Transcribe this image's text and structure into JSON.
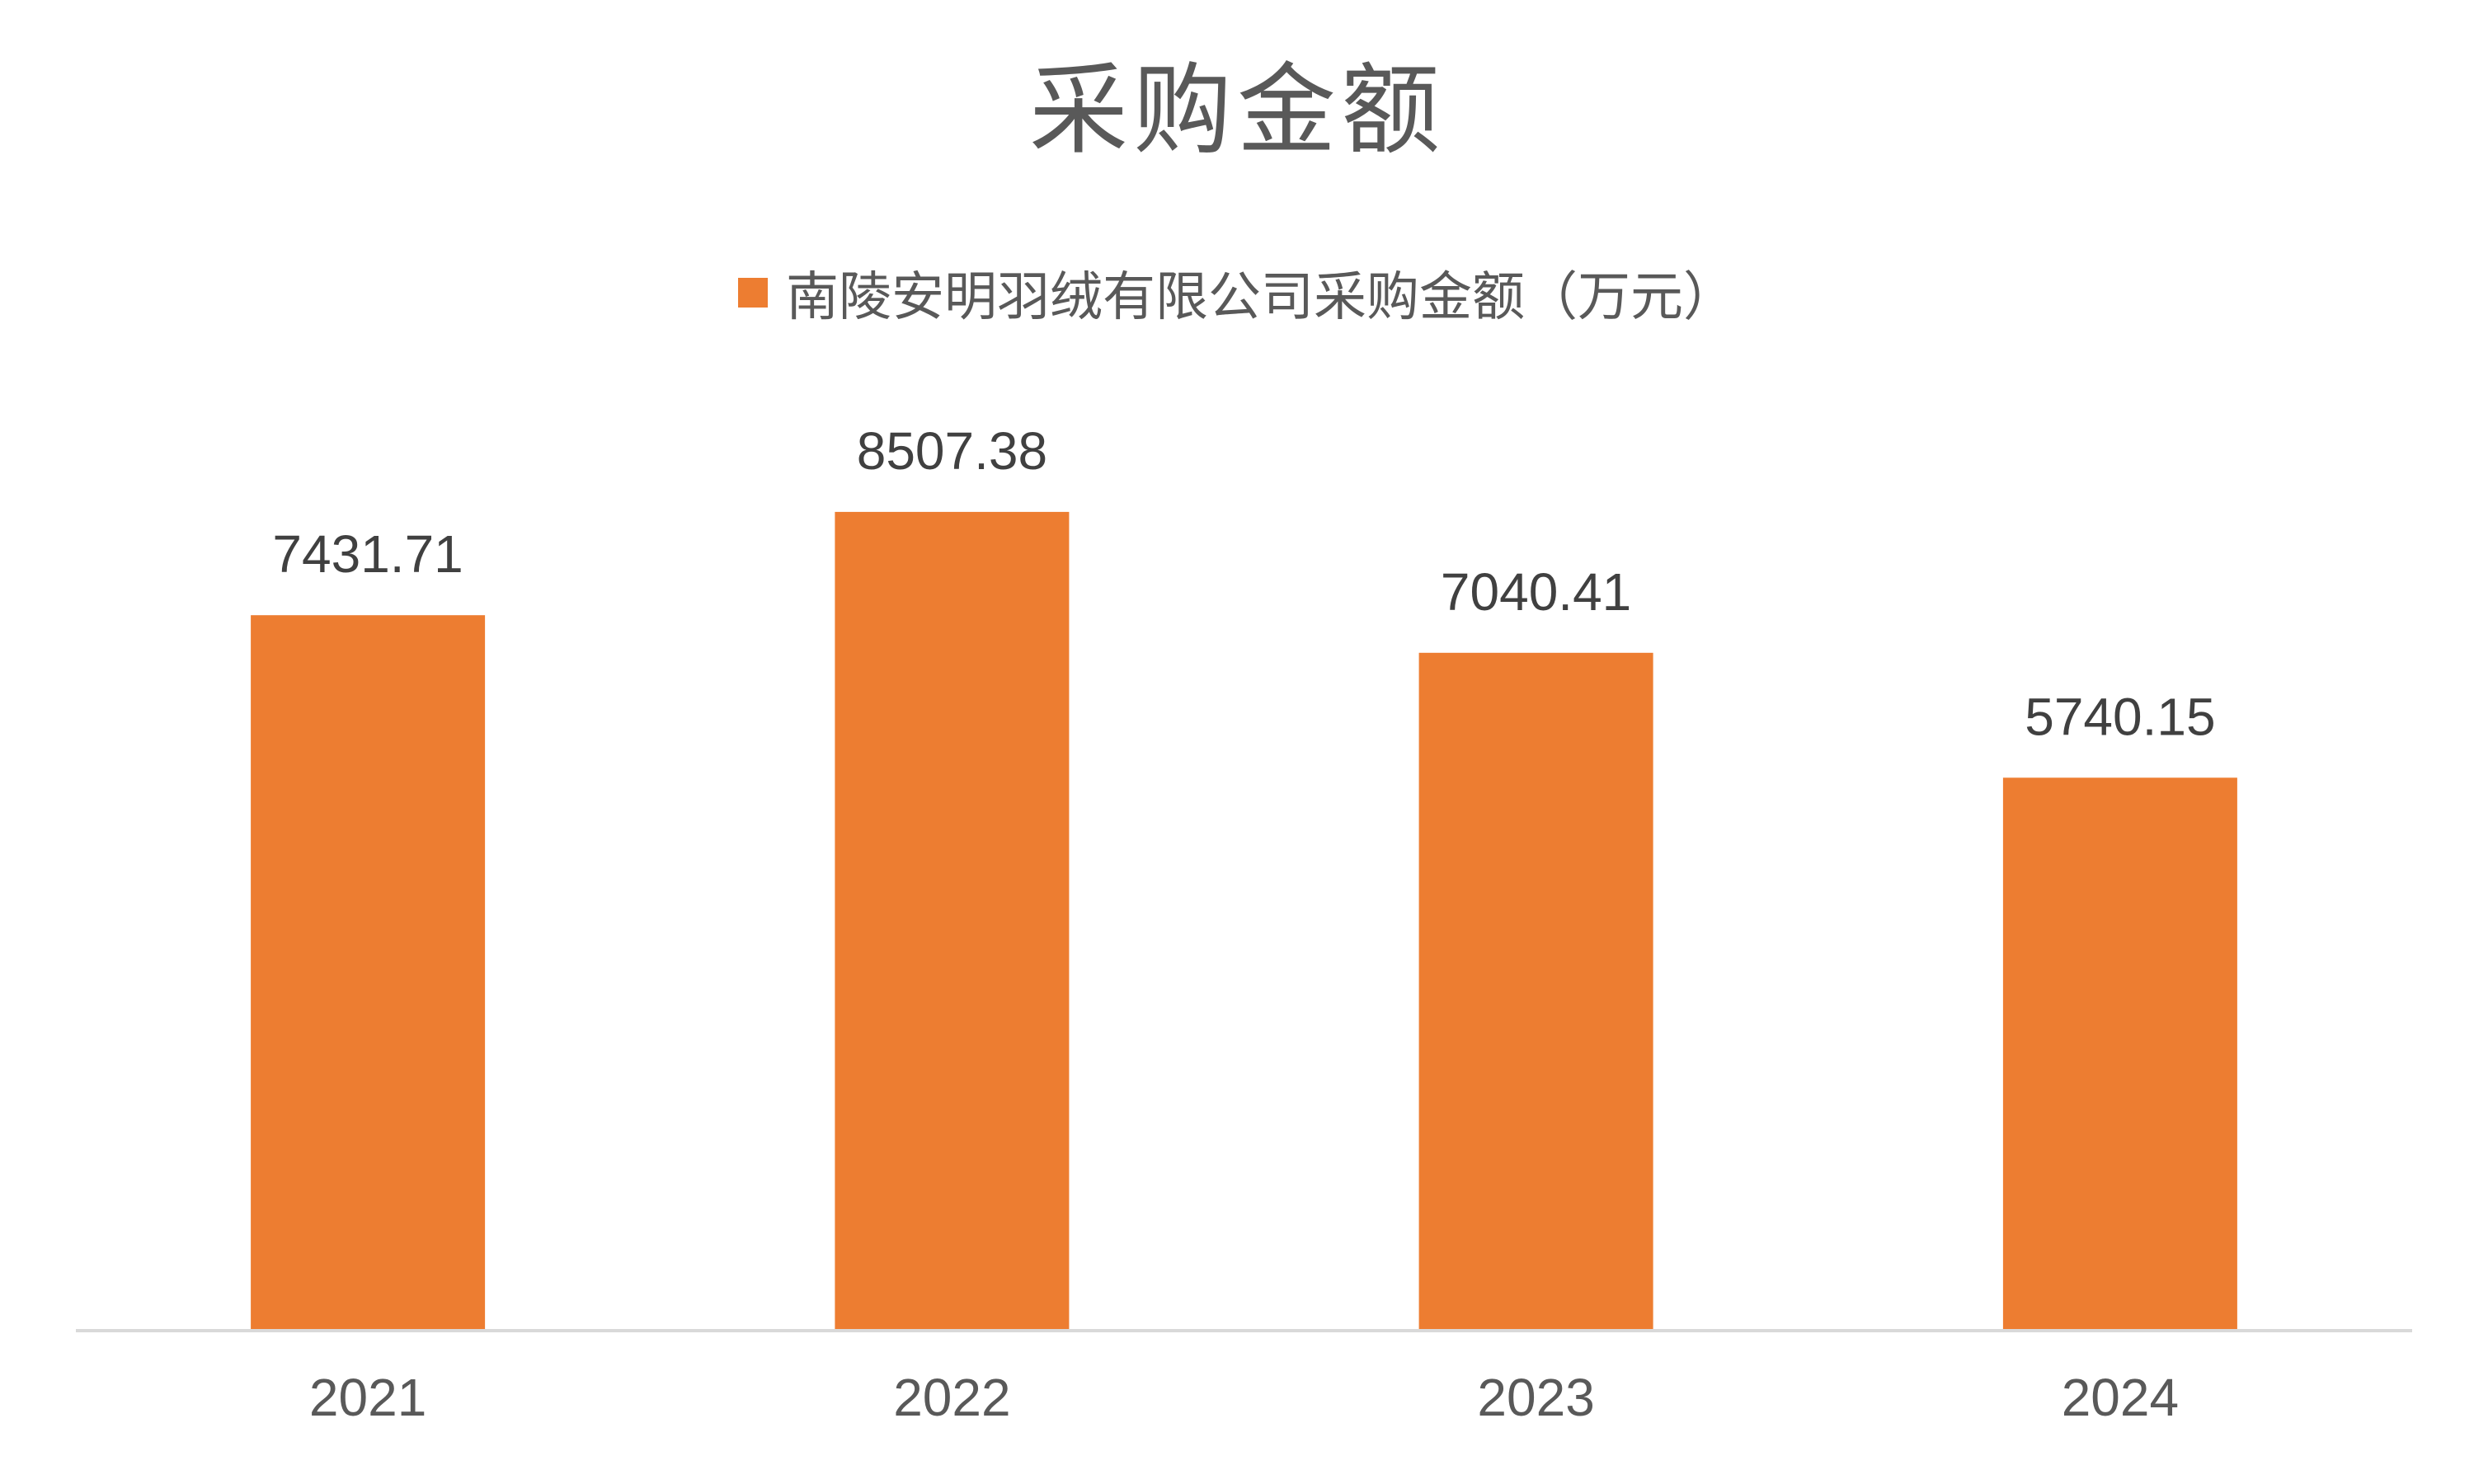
{
  "chart_data": {
    "type": "bar",
    "title": "采购金额",
    "categories": [
      "2021",
      "2022",
      "2023",
      "2024"
    ],
    "series": [
      {
        "name": "南陵安明羽绒有限公司采购金额（万元）",
        "values": [
          7431.71,
          8507.38,
          7040.41,
          5740.15
        ],
        "labels": [
          "7431.71",
          "8507.38",
          "7040.41",
          "5740.15"
        ],
        "color": "#ED7D31"
      }
    ],
    "ylim": [
      0,
      9000
    ],
    "grid": false,
    "legend": "top-center",
    "xlabel": "",
    "ylabel": ""
  },
  "colors": {
    "bar": "#ED7D31",
    "axis": "#D9D9D9",
    "title_text": "#595959",
    "label_text": "#404040"
  }
}
